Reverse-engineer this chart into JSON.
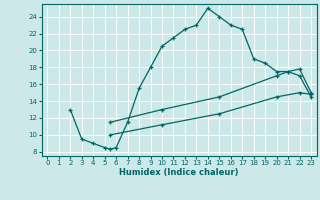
{
  "xlabel": "Humidex (Indice chaleur)",
  "bg_color": "#cce8e8",
  "grid_color": "#ffffff",
  "line_color": "#006666",
  "xlim": [
    -0.5,
    23.5
  ],
  "ylim": [
    7.5,
    25.5
  ],
  "xticks": [
    0,
    1,
    2,
    3,
    4,
    5,
    6,
    7,
    8,
    9,
    10,
    11,
    12,
    13,
    14,
    15,
    16,
    17,
    18,
    19,
    20,
    21,
    22,
    23
  ],
  "yticks": [
    8,
    10,
    12,
    14,
    16,
    18,
    20,
    22,
    24
  ],
  "line1_x": [
    2,
    3,
    4,
    5,
    5.5,
    6,
    7,
    8,
    9,
    10,
    11,
    12,
    13,
    14,
    15,
    16,
    17,
    18,
    19,
    20,
    21,
    22,
    23
  ],
  "line1_y": [
    13,
    9.5,
    9.0,
    8.5,
    8.3,
    8.5,
    11.5,
    15.5,
    18.0,
    20.5,
    21.5,
    22.5,
    23.0,
    25.0,
    24.0,
    23.0,
    22.5,
    19.0,
    18.5,
    17.5,
    17.5,
    17.0,
    14.5
  ],
  "line2_x": [
    5.5,
    10,
    15,
    20,
    21,
    22,
    23
  ],
  "line2_y": [
    11.5,
    13.0,
    14.5,
    17.0,
    17.5,
    17.8,
    15.0
  ],
  "line3_x": [
    5.5,
    10,
    15,
    20,
    22,
    23
  ],
  "line3_y": [
    10.0,
    11.2,
    12.5,
    14.5,
    15.0,
    14.8
  ]
}
